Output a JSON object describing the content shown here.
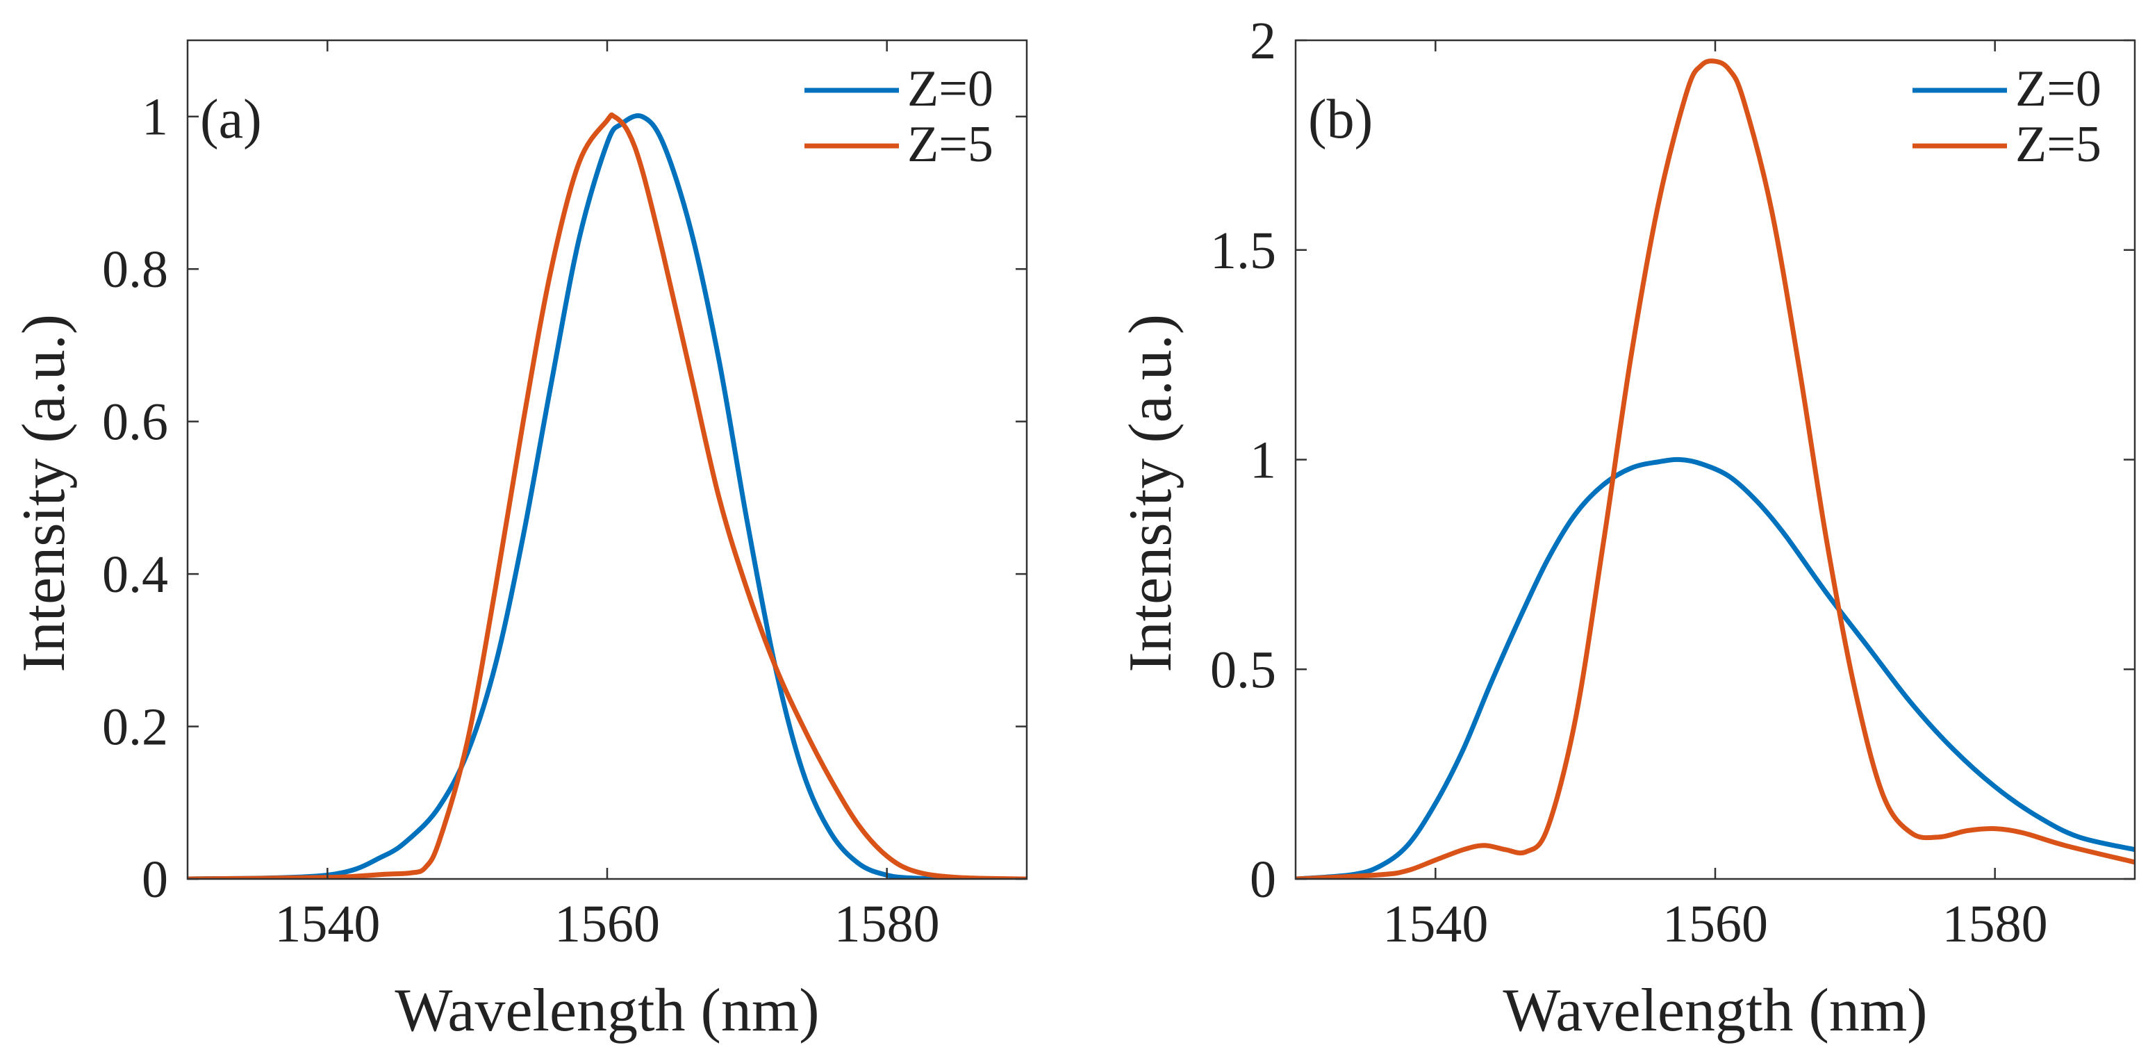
{
  "chart_data": [
    {
      "type": "line",
      "panel_label": "(a)",
      "xlabel": "Wavelength (nm)",
      "ylabel": "Intensity (a.u.)",
      "xlim": [
        1530,
        1590
      ],
      "ylim": [
        0,
        1.1
      ],
      "xticks": [
        1540,
        1560,
        1580
      ],
      "xtick_labels": [
        "1540",
        "1560",
        "1580"
      ],
      "yticks": [
        0,
        0.2,
        0.4,
        0.6,
        0.8,
        1
      ],
      "ytick_labels": [
        "0",
        "0.2",
        "0.4",
        "0.6",
        "0.8",
        "1"
      ],
      "legend_position": "top-right",
      "series": [
        {
          "name": "Z=0",
          "color": "#0072BD",
          "x": [
            1530,
            1540,
            1544,
            1546,
            1548,
            1550,
            1552,
            1554,
            1556,
            1558,
            1560,
            1561,
            1562.5,
            1564,
            1566,
            1568,
            1570,
            1572,
            1574,
            1576,
            1578,
            1580,
            1582,
            1585,
            1590
          ],
          "y": [
            0,
            0.005,
            0.03,
            0.055,
            0.095,
            0.165,
            0.28,
            0.45,
            0.65,
            0.84,
            0.965,
            0.99,
            1.0,
            0.965,
            0.85,
            0.68,
            0.47,
            0.28,
            0.14,
            0.06,
            0.02,
            0.005,
            0.001,
            0,
            0
          ]
        },
        {
          "name": "Z=5",
          "color": "#D95319",
          "x": [
            1530,
            1540,
            1544,
            1546,
            1547,
            1548,
            1550,
            1552,
            1554,
            1556,
            1558,
            1560,
            1560.5,
            1561.5,
            1562.5,
            1564,
            1566,
            1568,
            1570,
            1572,
            1574,
            1576,
            1578,
            1580,
            1582,
            1585,
            1590
          ],
          "y": [
            0,
            0.002,
            0.006,
            0.008,
            0.015,
            0.05,
            0.18,
            0.38,
            0.6,
            0.8,
            0.94,
            0.995,
            1.0,
            0.98,
            0.93,
            0.82,
            0.66,
            0.5,
            0.38,
            0.28,
            0.2,
            0.13,
            0.07,
            0.03,
            0.01,
            0.002,
            0
          ]
        }
      ]
    },
    {
      "type": "line",
      "panel_label": "(b)",
      "xlabel": "Wavelength (nm)",
      "ylabel": "Intensity (a.u.)",
      "xlim": [
        1530,
        1590
      ],
      "ylim": [
        0,
        2
      ],
      "xticks": [
        1540,
        1560,
        1580
      ],
      "xtick_labels": [
        "1540",
        "1560",
        "1580"
      ],
      "yticks": [
        0,
        0.5,
        1,
        1.5,
        2
      ],
      "ytick_labels": [
        "0",
        "0.5",
        "1",
        "1.5",
        "2"
      ],
      "legend_position": "top-right",
      "series": [
        {
          "name": "Z=0",
          "color": "#0072BD",
          "x": [
            1530,
            1534,
            1536,
            1538,
            1540,
            1542,
            1544,
            1546,
            1548,
            1550,
            1552,
            1554,
            1556,
            1557.5,
            1559,
            1561,
            1563,
            1565,
            1568,
            1571,
            1574,
            1577,
            1580,
            1583,
            1586,
            1590
          ],
          "y": [
            0,
            0.01,
            0.03,
            0.08,
            0.18,
            0.31,
            0.47,
            0.62,
            0.76,
            0.87,
            0.94,
            0.98,
            0.995,
            1.0,
            0.99,
            0.96,
            0.9,
            0.82,
            0.68,
            0.55,
            0.42,
            0.31,
            0.22,
            0.15,
            0.1,
            0.07
          ]
        },
        {
          "name": "Z=5",
          "color": "#D95319",
          "x": [
            1530,
            1536,
            1538,
            1540,
            1542,
            1543.5,
            1545,
            1546.5,
            1548,
            1550,
            1552,
            1554,
            1556,
            1558,
            1559,
            1560,
            1561,
            1562,
            1564,
            1566,
            1568,
            1570,
            1572,
            1574,
            1576,
            1578,
            1580,
            1582,
            1585,
            1590
          ],
          "y": [
            0,
            0.01,
            0.02,
            0.045,
            0.07,
            0.08,
            0.07,
            0.065,
            0.12,
            0.38,
            0.8,
            1.25,
            1.62,
            1.88,
            1.94,
            1.95,
            1.93,
            1.86,
            1.6,
            1.22,
            0.8,
            0.45,
            0.2,
            0.11,
            0.1,
            0.115,
            0.12,
            0.11,
            0.08,
            0.04
          ]
        }
      ]
    }
  ]
}
